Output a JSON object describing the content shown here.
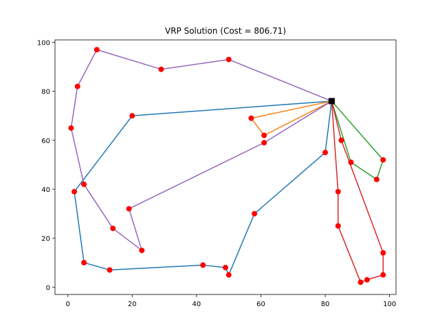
{
  "chart_data": {
    "type": "line",
    "title": "VRP Solution (Cost = 806.71)",
    "xlabel": "",
    "ylabel": "",
    "xlim": [
      -4,
      102
    ],
    "ylim": [
      -3,
      101
    ],
    "x_ticks": [
      0,
      20,
      40,
      60,
      80,
      100
    ],
    "y_ticks": [
      0,
      20,
      40,
      60,
      80,
      100
    ],
    "x_tick_labels": [
      "0",
      "20",
      "40",
      "60",
      "80",
      "100"
    ],
    "y_tick_labels": [
      "0",
      "20",
      "40",
      "60",
      "80",
      "100"
    ],
    "grid": false,
    "depot": {
      "x": 82,
      "y": 76,
      "color": "#000000"
    },
    "customer_color": "#ff0000",
    "series": [
      {
        "color": "#1f77b4",
        "route": [
          [
            82,
            76
          ],
          [
            20,
            70
          ],
          [
            2,
            39
          ],
          [
            5,
            10
          ],
          [
            13,
            7
          ],
          [
            42,
            9
          ],
          [
            49,
            8
          ],
          [
            50,
            5
          ],
          [
            58,
            30
          ],
          [
            80,
            55
          ],
          [
            82,
            76
          ]
        ]
      },
      {
        "color": "#ff7f0e",
        "route": [
          [
            82,
            76
          ],
          [
            57,
            69
          ],
          [
            61,
            62
          ],
          [
            82,
            76
          ]
        ]
      },
      {
        "color": "#2ca02c",
        "route": [
          [
            82,
            76
          ],
          [
            98,
            52
          ],
          [
            96,
            44
          ],
          [
            88,
            51
          ],
          [
            82,
            76
          ]
        ]
      },
      {
        "color": "#d62728",
        "route": [
          [
            82,
            76
          ],
          [
            84,
            39
          ],
          [
            84,
            25
          ],
          [
            91,
            2
          ],
          [
            93,
            3
          ],
          [
            98,
            5
          ],
          [
            98,
            14
          ],
          [
            85,
            60
          ],
          [
            82,
            76
          ]
        ]
      },
      {
        "color": "#9467bd",
        "route": [
          [
            82,
            76
          ],
          [
            50,
            93
          ],
          [
            29,
            89
          ],
          [
            9,
            97
          ],
          [
            3,
            82
          ],
          [
            1,
            65
          ],
          [
            5,
            42
          ],
          [
            14,
            24
          ],
          [
            23,
            15
          ],
          [
            19,
            32
          ],
          [
            61,
            59
          ],
          [
            82,
            76
          ]
        ]
      }
    ]
  }
}
